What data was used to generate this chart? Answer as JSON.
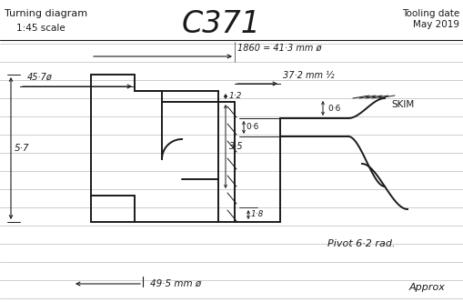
{
  "bg_color": "#ffffff",
  "line_color": "#1a1a1a",
  "title_left": "Turning diagram",
  "title_center": "C371",
  "title_right_line1": "Tooling date",
  "title_right_line2": "May 2019",
  "scale_text": "1:45 scale",
  "dim_1860": "1860 = 41·3 mm ø",
  "dim_457": "45·7ø",
  "dim_372": "37·2 mm ½",
  "dim_06_top": "↓0·6",
  "dim_06_bot": "↓0·6",
  "dim_12": "1·2",
  "dim_35": "3·5",
  "dim_18": "1·8",
  "dim_57": "5·7",
  "dim_495": "49·5 mm ø",
  "skim_text": "SKIM",
  "pivot_text": "Pivot 6·2 rad.",
  "approx_text": "Approx",
  "hline_color": "#bbbbbb",
  "lw_main": 1.4,
  "lw_thin": 0.7
}
